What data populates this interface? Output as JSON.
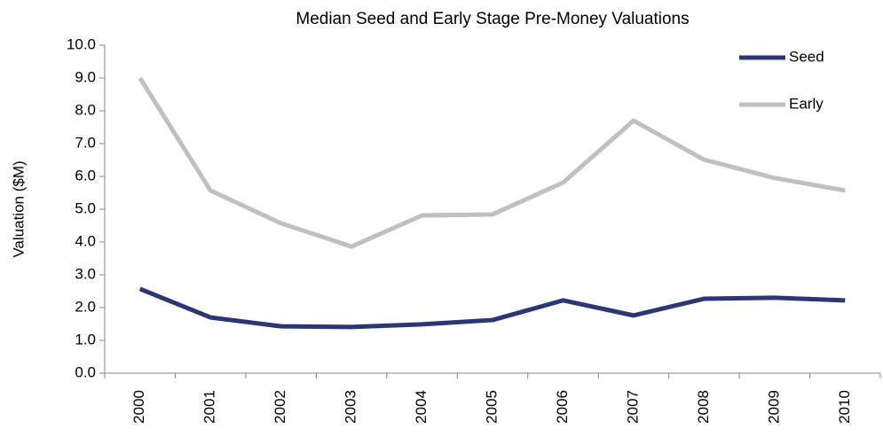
{
  "chart_data": {
    "type": "line",
    "title": "Median Seed and Early Stage Pre-Money Valuations",
    "y_label": "Valuation ($M)",
    "categories": [
      "2000",
      "2001",
      "2002",
      "2003",
      "2004",
      "2005",
      "2006",
      "2007",
      "2008",
      "2009",
      "2010"
    ],
    "series": [
      {
        "name": "Seed",
        "color": "#2b3674",
        "values": [
          2.57,
          1.7,
          1.43,
          1.41,
          1.49,
          1.62,
          2.22,
          1.76,
          2.27,
          2.3,
          2.22
        ]
      },
      {
        "name": "Early",
        "color": "#c0c0c0",
        "values": [
          9.0,
          5.57,
          4.57,
          3.86,
          4.81,
          4.84,
          5.81,
          7.7,
          6.51,
          5.95,
          5.57
        ]
      }
    ],
    "ylim": [
      0,
      10
    ],
    "yticks": [
      {
        "value": 0,
        "label": "0.0"
      },
      {
        "value": 1,
        "label": "1.0"
      },
      {
        "value": 2,
        "label": "2.0"
      },
      {
        "value": 3,
        "label": "3.0"
      },
      {
        "value": 4,
        "label": "4.0"
      },
      {
        "value": 5,
        "label": "5.0"
      },
      {
        "value": 6,
        "label": "6.0"
      },
      {
        "value": 7,
        "label": "7.0"
      },
      {
        "value": 8,
        "label": "8.0"
      },
      {
        "value": 9,
        "label": "9.0"
      },
      {
        "value": 10,
        "label": "10.0"
      }
    ],
    "legend": "top-right"
  }
}
